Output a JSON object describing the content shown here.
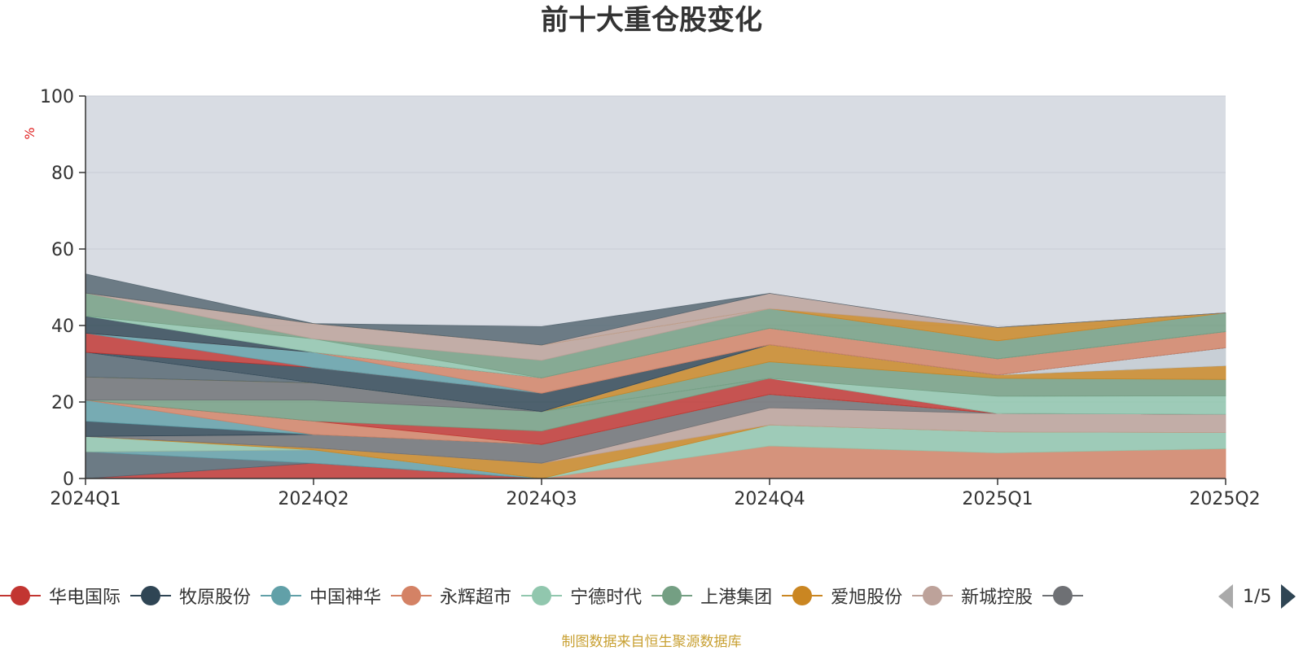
{
  "title": "前十大重仓股变化",
  "source_note": "制图数据来自恒生聚源数据库",
  "legend_pager": "1/5",
  "colors": {
    "plot_background": "#d8dce3",
    "axis": "#333333",
    "grid": "#c8ccd4",
    "ylabel": "#e02020"
  },
  "legend": [
    {
      "name": "华电国际",
      "color": "#c23531"
    },
    {
      "name": "牧原股份",
      "color": "#2f4554"
    },
    {
      "name": "中国神华",
      "color": "#61a0a8"
    },
    {
      "name": "永辉超市",
      "color": "#d48265"
    },
    {
      "name": "宁德时代",
      "color": "#91c7ae"
    },
    {
      "name": "上港集团",
      "color": "#749f83"
    },
    {
      "name": "爱旭股份",
      "color": "#ca8622"
    },
    {
      "name": "新城控股",
      "color": "#bda29a"
    },
    {
      "name": "",
      "color": "#6e7074"
    }
  ],
  "chart_data": {
    "type": "area",
    "stacked": true,
    "title": "前十大重仓股变化",
    "ylabel": "%",
    "xlabel": "",
    "categories": [
      "2024Q1",
      "2024Q2",
      "2024Q3",
      "2024Q4",
      "2025Q1",
      "2025Q2"
    ],
    "ylim": [
      0,
      100
    ],
    "yticks": [
      0,
      20,
      40,
      60,
      80,
      100
    ],
    "grid": true,
    "legend_position": "bottom",
    "series": [
      {
        "name": "华电国际",
        "values": [
          0,
          4,
          0,
          0,
          0,
          0
        ],
        "color": "#c23531"
      },
      {
        "name": "",
        "values": [
          7,
          0,
          0,
          0,
          0,
          0
        ],
        "color": "#546570"
      },
      {
        "name": "中国神华",
        "values": [
          0,
          3.5,
          0,
          0,
          0,
          0
        ],
        "color": "#61a0a8"
      },
      {
        "name": "永辉超市",
        "values": [
          0,
          0,
          0,
          8.5,
          6.7,
          7.8
        ],
        "color": "#d48265"
      },
      {
        "name": "宁德时代",
        "values": [
          4,
          0,
          0,
          5.5,
          5.5,
          4.2
        ],
        "color": "#91c7ae"
      },
      {
        "name": "爱旭股份",
        "values": [
          0,
          0.5,
          4,
          0,
          0,
          0
        ],
        "color": "#ca8622"
      },
      {
        "name": "新城控股",
        "values": [
          0,
          0,
          0,
          4.5,
          4.8,
          4.8
        ],
        "color": "#bda29a"
      },
      {
        "name": "",
        "values": [
          0,
          3.5,
          4.9,
          3.5,
          0,
          0
        ],
        "color": "#6e7074"
      },
      {
        "name": "牧原股份",
        "values": [
          4,
          0,
          0,
          0,
          0,
          0
        ],
        "color": "#2f4554"
      },
      {
        "name": "中国神华",
        "values": [
          5.5,
          0,
          0,
          0,
          0,
          0
        ],
        "color": "#61a0a8"
      },
      {
        "name": "永辉超市",
        "values": [
          0,
          3.5,
          0,
          0,
          0,
          0
        ],
        "color": "#d48265"
      },
      {
        "name": "华电国际",
        "values": [
          0,
          0,
          3.5,
          4.2,
          0,
          0
        ],
        "color": "#c23531"
      },
      {
        "name": "上港集团",
        "values": [
          0,
          5.5,
          5.1,
          0,
          0,
          0
        ],
        "color": "#749f83"
      },
      {
        "name": "",
        "values": [
          6,
          4.5,
          0,
          0,
          0,
          0
        ],
        "color": "#6e7074"
      },
      {
        "name": "宁德时代",
        "values": [
          0,
          0,
          0,
          0,
          4.5,
          4.8
        ],
        "color": "#91c7ae"
      },
      {
        "name": "上港集团",
        "values": [
          0,
          0,
          0,
          4.3,
          4.7,
          4.3
        ],
        "color": "#749f83"
      },
      {
        "name": "爱旭股份",
        "values": [
          0,
          0,
          0,
          4.5,
          0.9,
          3.6
        ],
        "color": "#ca8622"
      },
      {
        "name": "",
        "values": [
          6.5,
          0,
          0,
          0,
          0,
          0
        ],
        "color": "#546570"
      },
      {
        "name": "",
        "values": [
          0,
          0,
          0,
          0,
          0,
          4.7
        ],
        "color": "#c4ccd3"
      },
      {
        "name": "牧原股份",
        "values": [
          0,
          4,
          4.8,
          0,
          0,
          0
        ],
        "color": "#2f4554"
      },
      {
        "name": "华电国际",
        "values": [
          5,
          0,
          0,
          0,
          0,
          0
        ],
        "color": "#c23531"
      },
      {
        "name": "中国神华",
        "values": [
          0,
          4,
          0,
          0,
          0,
          0
        ],
        "color": "#61a0a8"
      },
      {
        "name": "永辉超市",
        "values": [
          0,
          0,
          4,
          4.3,
          4.2,
          4.2
        ],
        "color": "#d48265"
      },
      {
        "name": "牧原股份",
        "values": [
          4.5,
          0,
          0,
          0,
          0,
          0
        ],
        "color": "#2f4554"
      },
      {
        "name": "宁德时代",
        "values": [
          0,
          3.5,
          0,
          0,
          0,
          0
        ],
        "color": "#91c7ae"
      },
      {
        "name": "上港集团",
        "values": [
          6,
          0,
          4.6,
          5.1,
          4.7,
          4.9
        ],
        "color": "#749f83"
      },
      {
        "name": "新城控股",
        "values": [
          0,
          4,
          4,
          0,
          0,
          0
        ],
        "color": "#bda29a"
      },
      {
        "name": "爱旭股份",
        "values": [
          0,
          0,
          0,
          0,
          3.5,
          0
        ],
        "color": "#ca8622"
      },
      {
        "name": "新城控股",
        "values": [
          0,
          0,
          0,
          4,
          0,
          0
        ],
        "color": "#bda29a"
      },
      {
        "name": "",
        "values": [
          5,
          0,
          4.8,
          0,
          0,
          0
        ],
        "color": "#546570"
      }
    ]
  }
}
